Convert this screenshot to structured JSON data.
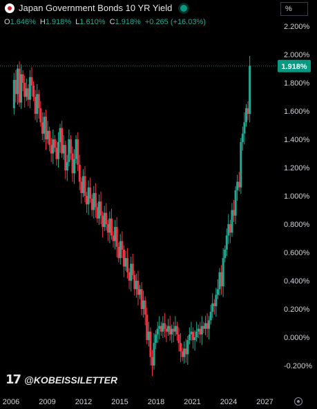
{
  "header": {
    "title": "Japan Government Bonds 10 YR Yield",
    "ohlc": [
      {
        "label": "O",
        "value": "1.646%"
      },
      {
        "label": "H",
        "value": "1.918%"
      },
      {
        "label": "L",
        "value": "1.610%"
      },
      {
        "label": "C",
        "value": "1.918%"
      }
    ],
    "change": "+0.265 (+16.03%)"
  },
  "scale_button": "%",
  "watermark": "@KOBEISSILETTER",
  "logo_text": "17",
  "colors": {
    "up": "#22ab94",
    "down": "#f23645",
    "last_price": "#089981"
  },
  "chart_data": {
    "type": "candlestick",
    "y_unit": "%",
    "ylim": [
      -0.28,
      2.3
    ],
    "x_start": 2006,
    "x_end": 2027.5,
    "yticks": [
      "2.200%",
      "2.000%",
      "1.800%",
      "1.600%",
      "1.400%",
      "1.200%",
      "1.000%",
      "0.800%",
      "0.600%",
      "0.400%",
      "0.200%",
      "0.000%",
      "-0.200%"
    ],
    "ytick_values": [
      2.2,
      2.0,
      1.8,
      1.6,
      1.4,
      1.2,
      1.0,
      0.8,
      0.6,
      0.4,
      0.2,
      0.0,
      -0.2
    ],
    "xticks": [
      "2006",
      "2009",
      "2012",
      "2015",
      "2018",
      "2021",
      "2024",
      "2027"
    ],
    "xtick_values": [
      2006,
      2009,
      2012,
      2015,
      2018,
      2021,
      2024,
      2027
    ],
    "last_value": 1.918,
    "last_label": "1.918%",
    "closes": [
      1.62,
      1.82,
      1.72,
      1.9,
      1.66,
      1.86,
      1.8,
      1.7,
      1.76,
      1.68,
      1.84,
      1.78,
      1.7,
      1.58,
      1.72,
      1.62,
      1.52,
      1.44,
      1.56,
      1.4,
      1.46,
      1.36,
      1.3,
      1.4,
      1.34,
      1.26,
      1.38,
      1.48,
      1.3,
      1.36,
      1.18,
      1.24,
      1.4,
      1.3,
      1.16,
      1.26,
      1.4,
      1.22,
      1.1,
      1.02,
      1.14,
      1.0,
      0.94,
      1.06,
      0.98,
      0.9,
      1.02,
      0.92,
      0.84,
      0.96,
      0.86,
      0.78,
      0.88,
      0.8,
      0.74,
      0.84,
      0.72,
      0.68,
      0.78,
      0.64,
      0.56,
      0.68,
      0.62,
      0.5,
      0.56,
      0.46,
      0.4,
      0.52,
      0.44,
      0.34,
      0.4,
      0.3,
      0.34,
      0.2,
      0.26,
      0.16,
      -0.02,
      0.04,
      -0.14,
      -0.2,
      -0.04,
      0.02,
      0.06,
      0.08,
      0.04,
      0.1,
      0.06,
      0.04,
      0.08,
      0.02,
      0.06,
      0.04,
      0.08,
      0.02,
      -0.04,
      -0.1,
      -0.14,
      -0.08,
      -0.12,
      -0.02,
      0.02,
      0.04,
      -0.02,
      0.0,
      0.04,
      0.06,
      0.02,
      0.08,
      0.06,
      0.1,
      0.06,
      0.12,
      0.18,
      0.24,
      0.22,
      0.3,
      0.34,
      0.46,
      0.36,
      0.56,
      0.62,
      0.72,
      0.8,
      0.74,
      0.9,
      0.86,
      1.04,
      1.1,
      1.06,
      1.38,
      1.44,
      1.52,
      1.62,
      1.58,
      1.92
    ]
  }
}
